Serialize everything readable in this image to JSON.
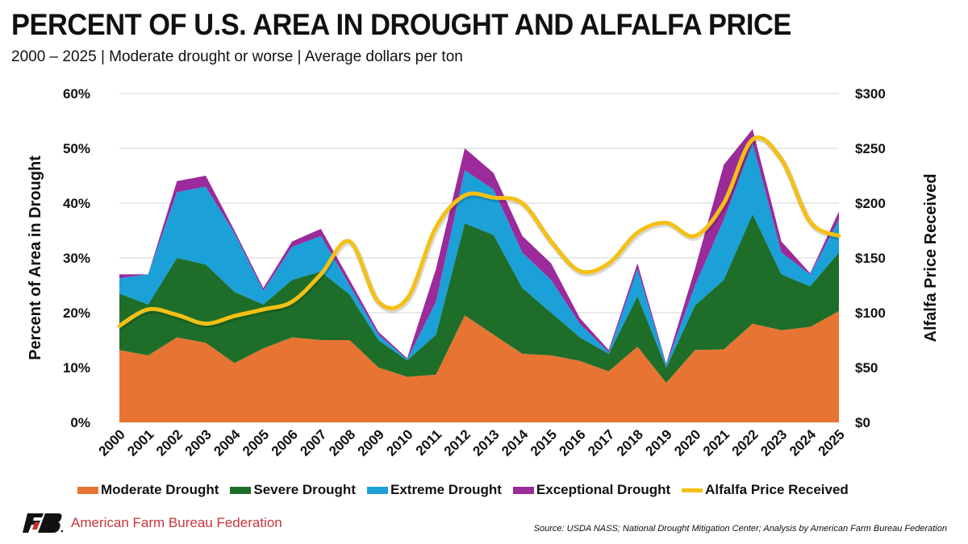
{
  "title": "PERCENT OF U.S. AREA IN DROUGHT AND ALFALFA PRICE",
  "subtitle": "2000 – 2025 | Moderate drought or worse | Average dollars per ton",
  "source": "Source: USDA NASS; National Drought Mitigation Center; Analysis by American Farm Bureau Federation",
  "organization": "American Farm Bureau Federation",
  "logo_text": "FB",
  "chart_data": {
    "type": "area",
    "stacked": true,
    "categories": [
      "2000",
      "2001",
      "2002",
      "2003",
      "2004",
      "2005",
      "2006",
      "2007",
      "2008",
      "2009",
      "2010",
      "2011",
      "2012",
      "2013",
      "2014",
      "2015",
      "2016",
      "2017",
      "2018",
      "2019",
      "2020",
      "2021",
      "2022",
      "2023",
      "2024",
      "2025"
    ],
    "ylabel": "Percent of Area in Drought",
    "ylabel_right": "Alfalfa Price Received",
    "ylim": [
      0,
      60
    ],
    "ylim_right": [
      0,
      300
    ],
    "yticks": [
      "0%",
      "10%",
      "20%",
      "30%",
      "40%",
      "50%",
      "60%"
    ],
    "yticks_right": [
      "$0",
      "$50",
      "$100",
      "$150",
      "$200",
      "$250",
      "$300"
    ],
    "grid": true,
    "legend_position": "bottom",
    "series": [
      {
        "name": "Moderate Drought",
        "color": "#e87433",
        "axis": "left",
        "values": [
          13.2,
          12.2,
          15.5,
          14.5,
          10.8,
          13.5,
          15.5,
          15.0,
          15.0,
          10.0,
          8.3,
          8.7,
          19.5,
          16.0,
          12.5,
          12.2,
          11.2,
          9.3,
          13.8,
          7.2,
          13.2,
          13.3,
          18.0,
          16.8,
          17.4,
          20.3
        ]
      },
      {
        "name": "Severe Drought",
        "color": "#1e6e2a",
        "axis": "left",
        "values": [
          10.3,
          9.3,
          14.5,
          14.3,
          13.0,
          8.0,
          10.5,
          12.5,
          8.3,
          5.0,
          3.0,
          7.3,
          16.8,
          18.2,
          12.0,
          7.8,
          4.3,
          3.2,
          9.2,
          2.8,
          8.1,
          12.7,
          20.0,
          10.2,
          7.4,
          10.7
        ]
      },
      {
        "name": "Extreme Drought",
        "color": "#1ba0d8",
        "axis": "left",
        "values": [
          2.8,
          5.5,
          12.0,
          14.2,
          10.7,
          2.5,
          6.0,
          6.5,
          1.7,
          1.0,
          0.2,
          6.0,
          9.7,
          8.3,
          6.5,
          6.0,
          2.5,
          0.3,
          5.0,
          0.5,
          3.7,
          11.0,
          13.0,
          4.0,
          2.2,
          6.0
        ]
      },
      {
        "name": "Exceptional Drought",
        "color": "#9b2a9a",
        "axis": "left",
        "values": [
          0.7,
          0.0,
          2.0,
          2.0,
          0.5,
          0.5,
          1.0,
          1.3,
          1.0,
          0.5,
          0.2,
          6.0,
          4.0,
          3.0,
          3.0,
          3.0,
          1.0,
          0.4,
          1.0,
          0.2,
          3.0,
          10.0,
          2.5,
          2.0,
          0.2,
          1.5
        ]
      },
      {
        "name": "Alfalfa Price Received",
        "color": "#f5c014",
        "axis": "right",
        "type": "line",
        "values": [
          88,
          103,
          98,
          90,
          97,
          103,
          110,
          135,
          165,
          110,
          113,
          178,
          207,
          205,
          200,
          165,
          138,
          145,
          173,
          182,
          170,
          200,
          258,
          240,
          183,
          170
        ]
      }
    ]
  }
}
